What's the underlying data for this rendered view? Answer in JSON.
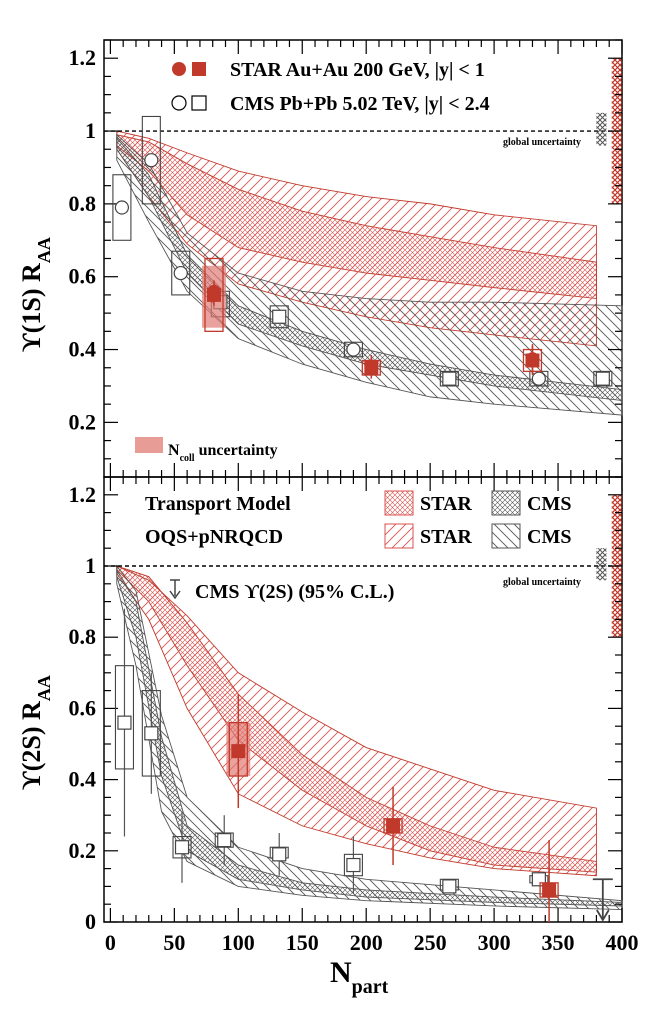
{
  "chart_data": [
    {
      "type": "scatter",
      "panel": "top",
      "ylabel": "ϒ(1S) R",
      "ylabel_sub": "AA",
      "xlim": [
        -5,
        400
      ],
      "ylim": [
        0.05,
        1.25
      ],
      "yticks": [
        "0.2",
        "0.4",
        "0.6",
        "0.8",
        "1",
        "1.2"
      ],
      "ytick_values": [
        0.2,
        0.4,
        0.6,
        0.8,
        1.0,
        1.2
      ],
      "reference_line": 1.0,
      "global_uncertainty_label": "global uncertainty",
      "ncoll_uncertainty_label": "N",
      "ncoll_uncertainty_sub": "coll",
      "ncoll_uncertainty_suffix": " uncertainty",
      "legend": [
        {
          "name": "STAR Au+Au 200 GeV, |y| < 1",
          "marker": "filled",
          "color": "#c0392b"
        },
        {
          "name": "CMS Pb+Pb 5.02 TeV, |y| < 2.4",
          "marker": "open",
          "color": "#000000"
        }
      ],
      "global_uncertainty": {
        "star": [
          0.8,
          1.2
        ],
        "cms": [
          0.96,
          1.05
        ]
      },
      "star_points": [
        {
          "x": 81,
          "y": 0.56,
          "err": 0.03,
          "box": [
            0.45,
            0.65
          ],
          "ncoll": [
            0.46,
            0.63
          ],
          "shape": "circle"
        },
        {
          "x": 81,
          "y": 0.55,
          "err": 0.03,
          "shape": "square"
        },
        {
          "x": 204,
          "y": 0.35,
          "err": 0.03,
          "box": [
            0.33,
            0.37
          ],
          "shape": "square"
        },
        {
          "x": 204,
          "y": 0.355,
          "err": 0.03,
          "shape": "circle"
        },
        {
          "x": 330,
          "y": 0.37,
          "err": 0.04,
          "box": [
            0.34,
            0.4
          ],
          "shape": "square"
        },
        {
          "x": 330,
          "y": 0.375,
          "err": 0.04,
          "shape": "circle"
        }
      ],
      "cms_points": [
        {
          "x": 9,
          "y": 0.79,
          "box": [
            0.7,
            0.88
          ],
          "shape": "circle"
        },
        {
          "x": 32,
          "y": 0.92,
          "box": [
            0.8,
            1.04
          ],
          "shape": "circle"
        },
        {
          "x": 55,
          "y": 0.61,
          "box": [
            0.55,
            0.67
          ],
          "shape": "circle"
        },
        {
          "x": 86,
          "y": 0.53,
          "box": [
            0.49,
            0.56
          ],
          "shape": "square"
        },
        {
          "x": 132,
          "y": 0.49,
          "box": [
            0.46,
            0.52
          ],
          "shape": "square"
        },
        {
          "x": 190,
          "y": 0.4,
          "box": [
            0.38,
            0.42
          ],
          "shape": "circle"
        },
        {
          "x": 265,
          "y": 0.32,
          "box": [
            0.3,
            0.34
          ],
          "shape": "square"
        },
        {
          "x": 335,
          "y": 0.32,
          "box": [
            0.3,
            0.34
          ],
          "shape": "circle"
        },
        {
          "x": 385,
          "y": 0.32,
          "box": [
            0.3,
            0.34
          ],
          "shape": "square"
        }
      ],
      "bands": [
        {
          "exp": "STAR",
          "style": "crosshatch",
          "color": "#c0392b",
          "x": [
            5,
            30,
            60,
            100,
            150,
            200,
            250,
            300,
            380
          ],
          "upper": [
            0.99,
            0.97,
            0.91,
            0.84,
            0.78,
            0.74,
            0.71,
            0.68,
            0.64
          ],
          "lower": [
            0.96,
            0.89,
            0.77,
            0.68,
            0.64,
            0.61,
            0.59,
            0.57,
            0.54
          ]
        },
        {
          "exp": "STAR",
          "style": "diagonal",
          "color": "#c0392b",
          "x": [
            5,
            30,
            60,
            100,
            150,
            200,
            250,
            300,
            380
          ],
          "upper": [
            1.0,
            0.98,
            0.94,
            0.89,
            0.85,
            0.82,
            0.8,
            0.77,
            0.74
          ],
          "lower": [
            0.95,
            0.82,
            0.69,
            0.58,
            0.53,
            0.49,
            0.46,
            0.44,
            0.41
          ]
        },
        {
          "exp": "CMS",
          "style": "crosshatch",
          "color": "#555555",
          "x": [
            5,
            30,
            60,
            100,
            150,
            200,
            250,
            300,
            400
          ],
          "upper": [
            0.98,
            0.88,
            0.66,
            0.52,
            0.45,
            0.4,
            0.36,
            0.33,
            0.29
          ],
          "lower": [
            0.95,
            0.82,
            0.61,
            0.47,
            0.41,
            0.36,
            0.33,
            0.3,
            0.26
          ]
        },
        {
          "exp": "CMS",
          "style": "diagonal",
          "color": "#555555",
          "x": [
            5,
            30,
            60,
            100,
            150,
            200,
            250,
            300,
            400
          ],
          "upper": [
            0.99,
            0.91,
            0.72,
            0.61,
            0.56,
            0.54,
            0.53,
            0.53,
            0.52
          ],
          "lower": [
            0.92,
            0.75,
            0.56,
            0.43,
            0.36,
            0.31,
            0.27,
            0.25,
            0.22
          ]
        }
      ]
    },
    {
      "type": "scatter",
      "panel": "bottom",
      "ylabel": "ϒ(2S) R",
      "ylabel_sub": "AA",
      "xlabel": "N",
      "xlabel_sub": "part",
      "xlim": [
        -5,
        400
      ],
      "ylim": [
        0,
        1.25
      ],
      "xticks": [
        "0",
        "50",
        "100",
        "150",
        "200",
        "250",
        "300",
        "350",
        "400"
      ],
      "xtick_values": [
        0,
        50,
        100,
        150,
        200,
        250,
        300,
        350,
        400
      ],
      "yticks": [
        "0",
        "0.2",
        "0.4",
        "0.6",
        "0.8",
        "1",
        "1.2"
      ],
      "ytick_values": [
        0,
        0.2,
        0.4,
        0.6,
        0.8,
        1.0,
        1.2
      ],
      "reference_line": 1.0,
      "global_uncertainty_label": "global uncertainty",
      "model_title_1": "Transport Model",
      "model_title_2": "OQS+pNRQCD",
      "model_legend": [
        {
          "name": "STAR",
          "style": "crosshatch",
          "color": "#c0392b"
        },
        {
          "name": "CMS",
          "style": "crosshatch",
          "color": "#555555"
        },
        {
          "name": "STAR",
          "style": "diagonal",
          "color": "#c0392b"
        },
        {
          "name": "CMS",
          "style": "diagonal",
          "color": "#555555"
        }
      ],
      "upper_limit_label": "CMS  ϒ(2S) (95% C.L.)",
      "upper_limit": {
        "x": 385,
        "y": 0.12
      },
      "global_uncertainty": {
        "star": [
          0.8,
          1.2
        ],
        "cms": [
          0.96,
          1.05
        ]
      },
      "star_points": [
        {
          "x": 100,
          "y": 0.48,
          "err": 0.16,
          "box": [
            0.41,
            0.56
          ],
          "ncoll": [
            0.41,
            0.56
          ],
          "shape": "square"
        },
        {
          "x": 221,
          "y": 0.27,
          "err": 0.11,
          "box": [
            0.25,
            0.29
          ],
          "shape": "square"
        },
        {
          "x": 343,
          "y": 0.09,
          "err": 0.14,
          "box": [
            0.07,
            0.11
          ],
          "shape": "square"
        }
      ],
      "cms_points": [
        {
          "x": 11,
          "y": 0.56,
          "err": 0.32,
          "box": [
            0.43,
            0.72
          ],
          "shape": "square"
        },
        {
          "x": 32,
          "y": 0.53,
          "err": 0.17,
          "box": [
            0.41,
            0.65
          ],
          "shape": "square"
        },
        {
          "x": 56,
          "y": 0.21,
          "err": 0.1,
          "box": [
            0.18,
            0.24
          ],
          "shape": "square"
        },
        {
          "x": 89,
          "y": 0.23,
          "err": 0.07,
          "box": [
            0.21,
            0.25
          ],
          "shape": "square"
        },
        {
          "x": 132,
          "y": 0.19,
          "err": 0.06,
          "box": [
            0.18,
            0.21
          ],
          "shape": "square"
        },
        {
          "x": 190,
          "y": 0.16,
          "err": 0.08,
          "box": [
            0.13,
            0.19
          ],
          "shape": "square"
        },
        {
          "x": 265,
          "y": 0.1,
          "err": 0.02,
          "box": [
            0.09,
            0.12
          ],
          "shape": "square"
        },
        {
          "x": 335,
          "y": 0.12,
          "err": 0.02,
          "box": [
            0.11,
            0.13
          ],
          "shape": "square"
        }
      ],
      "bands": [
        {
          "exp": "STAR",
          "style": "crosshatch",
          "color": "#c0392b",
          "x": [
            5,
            30,
            60,
            100,
            150,
            200,
            250,
            300,
            380
          ],
          "upper": [
            1.0,
            0.97,
            0.84,
            0.64,
            0.47,
            0.35,
            0.27,
            0.21,
            0.17
          ],
          "lower": [
            0.99,
            0.9,
            0.72,
            0.51,
            0.37,
            0.27,
            0.2,
            0.16,
            0.14
          ]
        },
        {
          "exp": "STAR",
          "style": "diagonal",
          "color": "#c0392b",
          "x": [
            5,
            30,
            60,
            100,
            150,
            200,
            250,
            300,
            380
          ],
          "upper": [
            1.0,
            0.96,
            0.86,
            0.7,
            0.59,
            0.49,
            0.43,
            0.37,
            0.32
          ],
          "lower": [
            0.98,
            0.85,
            0.6,
            0.36,
            0.27,
            0.22,
            0.18,
            0.15,
            0.13
          ]
        },
        {
          "exp": "CMS",
          "style": "crosshatch",
          "color": "#555555",
          "x": [
            5,
            20,
            40,
            60,
            100,
            150,
            200,
            300,
            400
          ],
          "upper": [
            0.99,
            0.9,
            0.52,
            0.27,
            0.16,
            0.11,
            0.09,
            0.07,
            0.055
          ],
          "lower": [
            0.97,
            0.8,
            0.41,
            0.2,
            0.12,
            0.09,
            0.07,
            0.055,
            0.045
          ]
        },
        {
          "exp": "CMS",
          "style": "diagonal",
          "color": "#555555",
          "x": [
            5,
            20,
            40,
            60,
            100,
            150,
            200,
            300,
            400
          ],
          "upper": [
            1.0,
            0.93,
            0.58,
            0.35,
            0.21,
            0.15,
            0.12,
            0.09,
            0.06
          ],
          "lower": [
            0.95,
            0.72,
            0.31,
            0.17,
            0.1,
            0.075,
            0.06,
            0.045,
            0.035
          ]
        }
      ]
    }
  ],
  "colors": {
    "star": "#c0392b",
    "star_box": "#e07b73",
    "star_band": "#d9534f",
    "cms": "#000000",
    "cms_band": "#555555"
  }
}
